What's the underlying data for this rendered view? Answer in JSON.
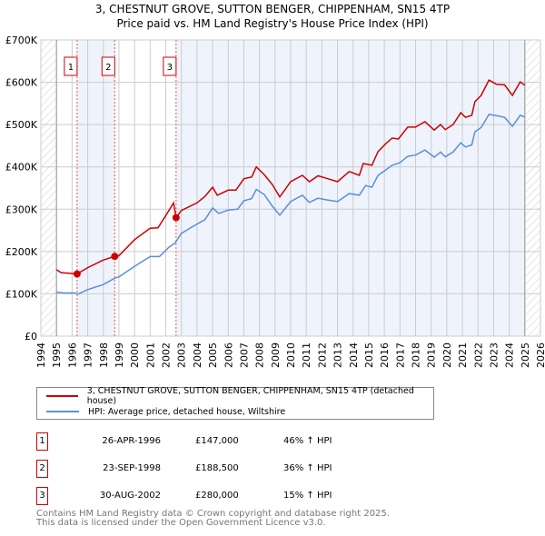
{
  "title_line1": "3, CHESTNUT GROVE, SUTTON BENGER, CHIPPENHAM, SN15 4TP",
  "title_line2": "Price paid vs. HM Land Registry's House Price Index (HPI)",
  "colors": {
    "property": "#cc0000",
    "hpi": "#5b8fd6",
    "shade": "#eef3fc",
    "grid": "#cccccc"
  },
  "chart_data": {
    "type": "line",
    "title": "3, CHESTNUT GROVE, SUTTON BENGER, CHIPPENHAM, SN15 4TP — Price paid vs. HM Land Registry's House Price Index (HPI)",
    "xlim": [
      1994,
      2026
    ],
    "ylim": [
      0,
      700000
    ],
    "x_ticks": [
      "1994",
      "1995",
      "1996",
      "1997",
      "1998",
      "1999",
      "2000",
      "2001",
      "2002",
      "2003",
      "2004",
      "2005",
      "2006",
      "2007",
      "2008",
      "2009",
      "2010",
      "2011",
      "2012",
      "2013",
      "2014",
      "2015",
      "2016",
      "2017",
      "2018",
      "2019",
      "2020",
      "2021",
      "2022",
      "2023",
      "2024",
      "2025",
      "2026"
    ],
    "y_ticks": [
      {
        "v": 0,
        "label": "£0"
      },
      {
        "v": 100000,
        "label": "£100K"
      },
      {
        "v": 200000,
        "label": "£200K"
      },
      {
        "v": 300000,
        "label": "£300K"
      },
      {
        "v": 400000,
        "label": "£400K"
      },
      {
        "v": 500000,
        "label": "£500K"
      },
      {
        "v": 600000,
        "label": "£600K"
      },
      {
        "v": 700000,
        "label": "£700K"
      }
    ],
    "grid": true,
    "data_range": [
      1995,
      2025
    ],
    "series": [
      {
        "name": "3, CHESTNUT GROVE, SUTTON BENGER, CHIPPENHAM, SN15 4TP (detached house)",
        "color": "#cc0000",
        "x": [
          1995,
          1995.3,
          1996.32,
          1997,
          1998,
          1998.73,
          1999,
          2000,
          2001,
          2001.5,
          2002,
          2002.5,
          2002.66,
          2003,
          2004,
          2004.5,
          2005,
          2005.3,
          2006,
          2006.5,
          2007,
          2007.5,
          2007.8,
          2008.3,
          2008.83,
          2009.3,
          2010,
          2010.75,
          2011.2,
          2011.75,
          2012.3,
          2013,
          2013.75,
          2014.4,
          2014.65,
          2015.2,
          2015.6,
          2016.1,
          2016.5,
          2016.9,
          2017.5,
          2018,
          2018.6,
          2019.2,
          2019.6,
          2019.9,
          2020.4,
          2020.9,
          2021.2,
          2021.6,
          2021.8,
          2022.2,
          2022.7,
          2023.2,
          2023.7,
          2024.2,
          2024.7,
          2025
        ],
        "y": [
          157000,
          150000,
          147000,
          162000,
          180000,
          188500,
          190000,
          228000,
          255000,
          256000,
          285000,
          315000,
          280000,
          297000,
          315000,
          330000,
          352000,
          333000,
          345000,
          345000,
          372000,
          376000,
          400000,
          382000,
          358000,
          329000,
          365000,
          380000,
          365000,
          379000,
          373000,
          365000,
          389000,
          380000,
          408000,
          404000,
          436000,
          455000,
          468000,
          466000,
          494000,
          494000,
          507000,
          487000,
          500000,
          488000,
          500000,
          528000,
          517000,
          522000,
          554000,
          569000,
          605000,
          595000,
          594000,
          569000,
          601000,
          593000
        ]
      },
      {
        "name": "HPI: Average price, detached house, Wiltshire",
        "color": "#5b8fd6",
        "x": [
          1995,
          1995.5,
          1996.2,
          1996.35,
          1997,
          1998,
          1998.73,
          1999,
          2000,
          2001,
          2001.6,
          2002.2,
          2002.6,
          2003,
          2004,
          2004.5,
          2005,
          2005.4,
          2006,
          2006.6,
          2007,
          2007.5,
          2007.8,
          2008.3,
          2008.83,
          2009.3,
          2010,
          2010.75,
          2011.2,
          2011.75,
          2012.3,
          2013,
          2013.75,
          2014.4,
          2014.8,
          2015.2,
          2015.6,
          2016.1,
          2016.5,
          2017,
          2017.5,
          2018,
          2018.6,
          2019.2,
          2019.6,
          2019.9,
          2020.4,
          2020.9,
          2021.2,
          2021.6,
          2021.8,
          2022.2,
          2022.7,
          2023.2,
          2023.7,
          2024.2,
          2024.7,
          2025
        ],
        "y": [
          104000,
          102000,
          102000,
          99000,
          110000,
          122000,
          137000,
          140000,
          165000,
          188000,
          188000,
          210000,
          220000,
          243000,
          265000,
          275000,
          303000,
          290000,
          298000,
          300000,
          320000,
          325000,
          347000,
          335000,
          307000,
          286000,
          318000,
          333000,
          316000,
          326000,
          322000,
          318000,
          337000,
          333000,
          356000,
          352000,
          380000,
          393000,
          404000,
          410000,
          425000,
          428000,
          440000,
          423000,
          435000,
          424000,
          435000,
          457000,
          447000,
          452000,
          483000,
          493000,
          524000,
          521000,
          517000,
          496000,
          522000,
          518000
        ]
      }
    ],
    "sales": [
      {
        "num": "1",
        "x": 1996.32,
        "y": 147000,
        "date": "26-APR-1996",
        "price": "£147,000",
        "hpi": "46% ↑ HPI"
      },
      {
        "num": "2",
        "x": 1998.73,
        "y": 188500,
        "date": "23-SEP-1998",
        "price": "£188,500",
        "hpi": "36% ↑ HPI"
      },
      {
        "num": "3",
        "x": 2002.66,
        "y": 280000,
        "date": "30-AUG-2002",
        "price": "£280,000",
        "hpi": "15% ↑ HPI"
      }
    ],
    "legend_position": "below"
  },
  "legend": {
    "property": "3, CHESTNUT GROVE, SUTTON BENGER, CHIPPENHAM, SN15 4TP (detached house)",
    "hpi": "HPI: Average price, detached house, Wiltshire"
  },
  "footer": {
    "line1": "Contains HM Land Registry data © Crown copyright and database right 2025.",
    "line2": "This data is licensed under the Open Government Licence v3.0."
  }
}
